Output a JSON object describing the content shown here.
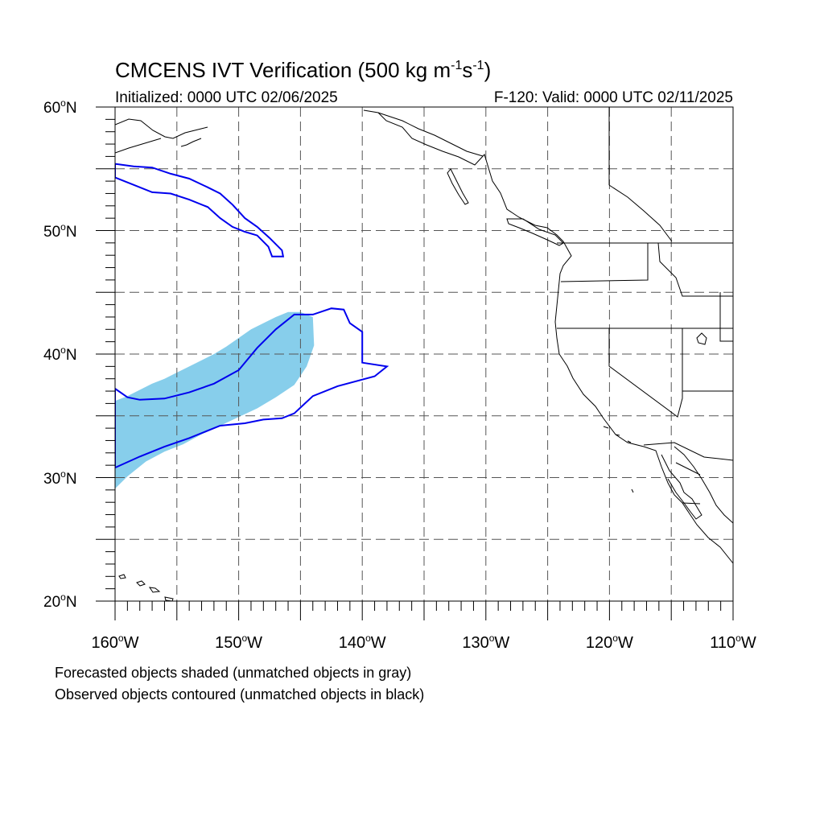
{
  "title": {
    "text_before_m": "CMCENS IVT Verification (500 kg m",
    "sup1": "-1",
    "text_s": "s",
    "sup2": "-1",
    "text_close": ")"
  },
  "subtitle_left": "Initialized: 0000 UTC 02/06/2025",
  "subtitle_right": "F-120: Valid: 0000 UTC 02/11/2025",
  "lat_ticks": [
    {
      "value": 60,
      "label": "60",
      "suffix": "N"
    },
    {
      "value": 50,
      "label": "50",
      "suffix": "N"
    },
    {
      "value": 40,
      "label": "40",
      "suffix": "N"
    },
    {
      "value": 30,
      "label": "30",
      "suffix": "N"
    },
    {
      "value": 20,
      "label": "20",
      "suffix": "N"
    }
  ],
  "lon_ticks": [
    {
      "value": -160,
      "label": "160",
      "suffix": "W"
    },
    {
      "value": -150,
      "label": "150",
      "suffix": "W"
    },
    {
      "value": -140,
      "label": "140",
      "suffix": "W"
    },
    {
      "value": -130,
      "label": "130",
      "suffix": "W"
    },
    {
      "value": -120,
      "label": "120",
      "suffix": "W"
    },
    {
      "value": -110,
      "label": "110",
      "suffix": "W"
    }
  ],
  "footnotes": [
    "Forecasted objects shaded (unmatched objects in gray)",
    "Observed objects contoured (unmatched objects in black)"
  ],
  "colors": {
    "forecast_fill": "#87ceeb",
    "observed_contour": "#0000ee",
    "coastline": "#000000",
    "grid": "#555555"
  },
  "map_extent": {
    "lon_min": -160,
    "lon_max": -110,
    "lat_min": 20,
    "lat_max": 60
  },
  "forecast_object": {
    "name": "",
    "outline": [
      [
        -160,
        36.2
      ],
      [
        -159,
        36.6
      ],
      [
        -158,
        37.1
      ],
      [
        -157,
        37.6
      ],
      [
        -156,
        38.0
      ],
      [
        -155,
        38.5
      ],
      [
        -154,
        39.0
      ],
      [
        -153,
        39.5
      ],
      [
        -152,
        40.0
      ],
      [
        -151,
        40.6
      ],
      [
        -150,
        41.3
      ],
      [
        -149,
        42.0
      ],
      [
        -148,
        42.5
      ],
      [
        -147,
        43.0
      ],
      [
        -146,
        43.4
      ],
      [
        -145,
        43.4
      ],
      [
        -144,
        43.0
      ],
      [
        -143.9,
        40.7
      ],
      [
        -144.5,
        39.0
      ],
      [
        -145.5,
        37.5
      ],
      [
        -147,
        36.5
      ],
      [
        -148.5,
        35.6
      ],
      [
        -150,
        34.9
      ],
      [
        -151.5,
        34.2
      ],
      [
        -153,
        33.5
      ],
      [
        -154.5,
        32.7
      ],
      [
        -156,
        32.1
      ],
      [
        -157.5,
        31.3
      ],
      [
        -159,
        30.1
      ],
      [
        -160,
        29.1
      ]
    ]
  },
  "observed_objects": [
    {
      "name": "",
      "outline": [
        [
          -160,
          37.2
        ],
        [
          -159,
          36.5
        ],
        [
          -158,
          36.3
        ],
        [
          -156,
          36.4
        ],
        [
          -154,
          36.9
        ],
        [
          -152,
          37.6
        ],
        [
          -150,
          38.7
        ],
        [
          -148.5,
          40.5
        ],
        [
          -147,
          42.0
        ],
        [
          -145.5,
          43.2
        ],
        [
          -144,
          43.2
        ],
        [
          -142.5,
          43.7
        ],
        [
          -141.5,
          43.6
        ],
        [
          -141,
          42.5
        ],
        [
          -140,
          41.8
        ],
        [
          -140,
          39.3
        ],
        [
          -138,
          39.0
        ],
        [
          -139,
          38.2
        ],
        [
          -142,
          37.4
        ],
        [
          -144,
          36.6
        ],
        [
          -145.5,
          35.2
        ],
        [
          -146.5,
          34.8
        ],
        [
          -148,
          34.7
        ],
        [
          -149.5,
          34.4
        ],
        [
          -151.5,
          34.2
        ],
        [
          -154,
          33.2
        ],
        [
          -156,
          32.5
        ],
        [
          -158,
          31.7
        ],
        [
          -160,
          30.8
        ]
      ]
    },
    {
      "name": "",
      "outline": [
        [
          -160,
          55.4
        ],
        [
          -158.5,
          55.2
        ],
        [
          -157,
          55.1
        ],
        [
          -155.5,
          54.6
        ],
        [
          -154,
          54.2
        ],
        [
          -152.5,
          53.5
        ],
        [
          -151.5,
          53.0
        ],
        [
          -150.5,
          52.1
        ],
        [
          -149.5,
          51.0
        ],
        [
          -148.5,
          50.3
        ],
        [
          -147.5,
          49.4
        ],
        [
          -146.5,
          48.4
        ],
        [
          -146.4,
          47.9
        ],
        [
          -147.3,
          47.9
        ],
        [
          -147.6,
          48.7
        ],
        [
          -148.5,
          49.6
        ],
        [
          -149.5,
          49.9
        ],
        [
          -150.5,
          50.3
        ],
        [
          -151.5,
          51.0
        ],
        [
          -152.5,
          51.9
        ],
        [
          -154,
          52.5
        ],
        [
          -155.5,
          53.0
        ],
        [
          -157,
          53.1
        ],
        [
          -158.5,
          53.7
        ],
        [
          -160,
          54.3
        ]
      ]
    }
  ]
}
